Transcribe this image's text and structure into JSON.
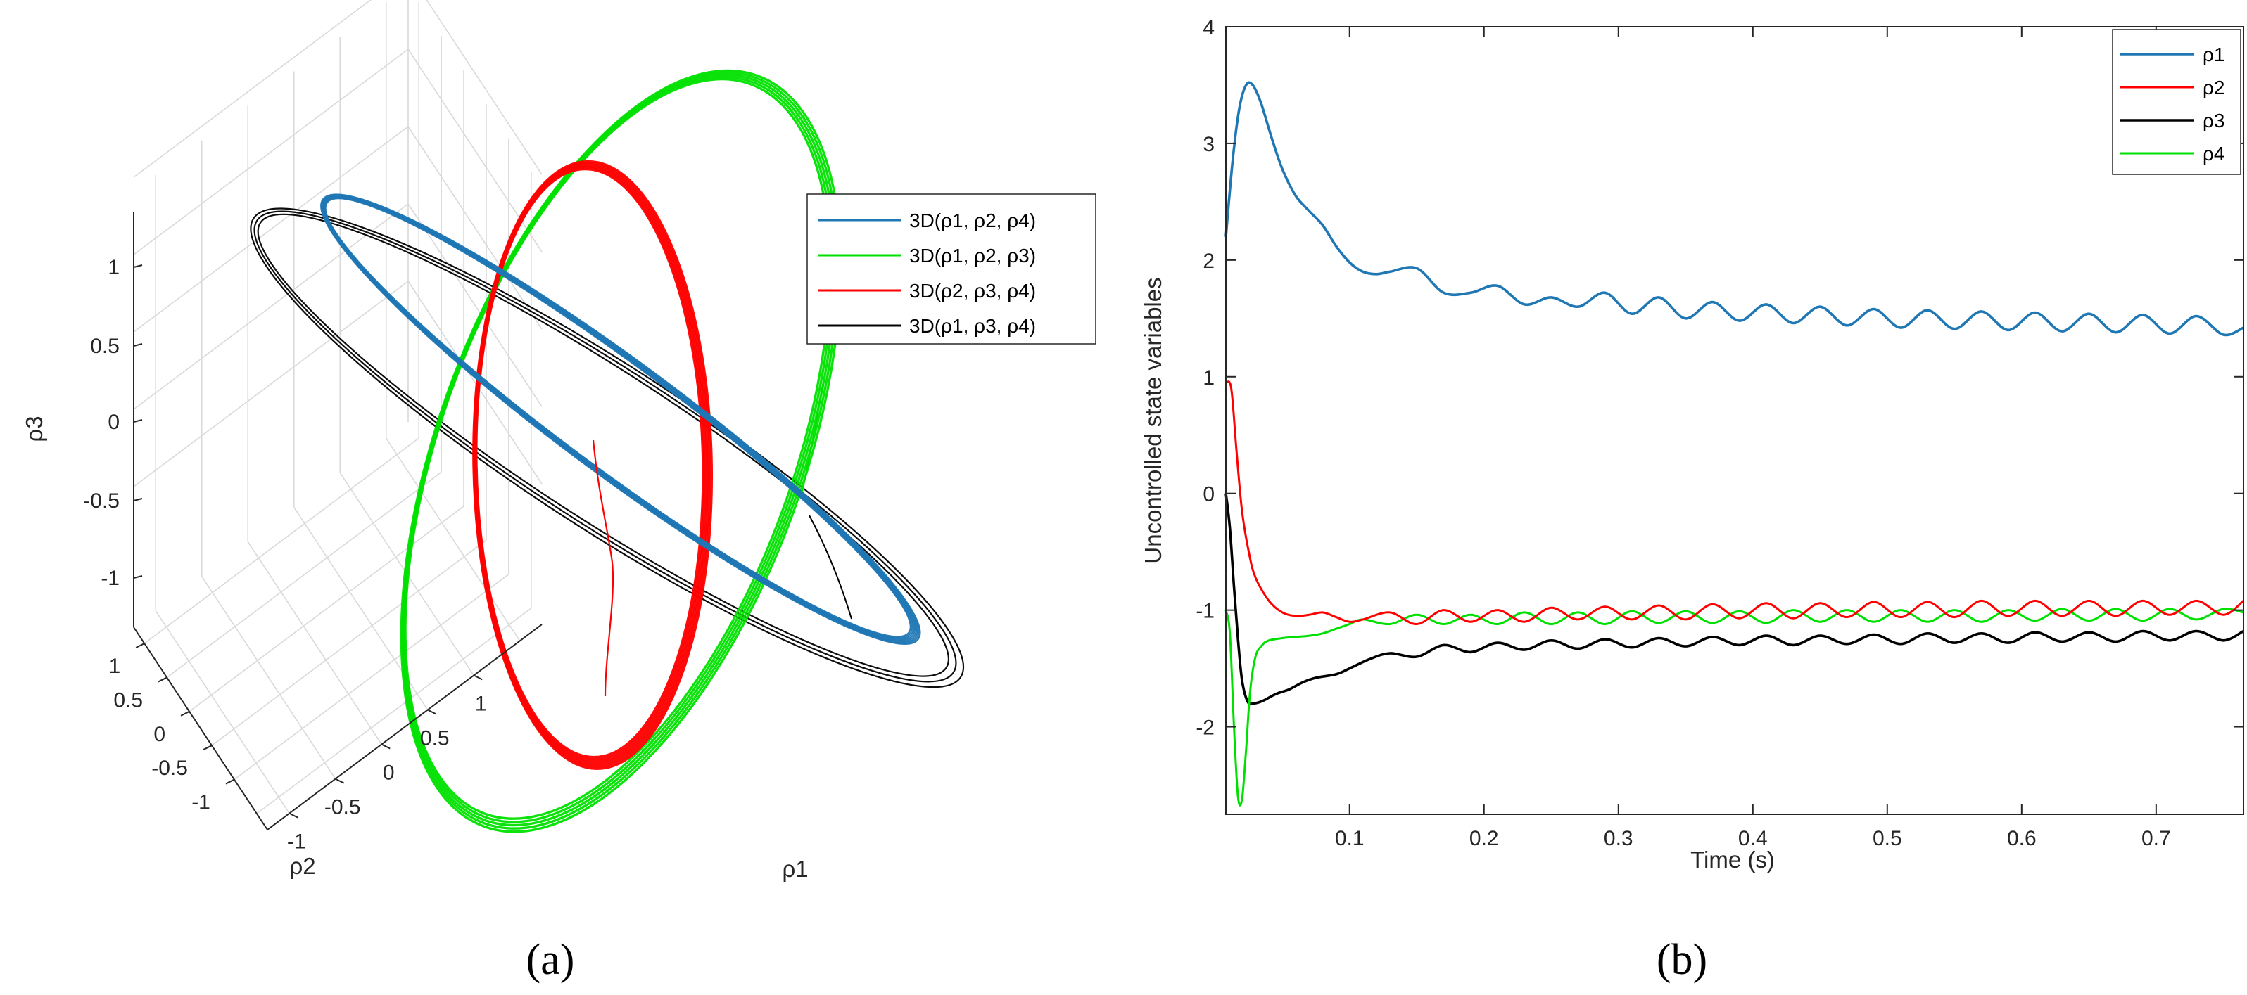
{
  "chart_data": [
    {
      "panel_label": "(a)",
      "type": "line",
      "projection": "3d",
      "xlabel": "ρ1",
      "ylabel": "ρ2",
      "zlabel": "ρ3",
      "x_ticks": [
        "-1",
        "-0.5",
        "0",
        "0.5",
        "1"
      ],
      "y_ticks": [
        "1",
        "0.5",
        "0",
        "-0.5",
        "-1"
      ],
      "z_ticks": [
        "1",
        "0.5",
        "0",
        "-0.5",
        "-1"
      ],
      "legend": {
        "placement": "top-right",
        "entries": [
          "3D(ρ1, ρ2, ρ4)",
          "3D(ρ1, ρ2, ρ3)",
          "3D(ρ2, ρ3, ρ4)",
          "3D(ρ1, ρ3, ρ4)"
        ]
      },
      "series": [
        {
          "name": "3D(ρ1, ρ2, ρ4)",
          "color": "#1f77b4",
          "shape": "closed-loop",
          "description_values": {
            "tilt_deg": 38,
            "semi_major": 1.25,
            "semi_minor": 0.18
          }
        },
        {
          "name": "3D(ρ1, ρ2, ρ3)",
          "color": "#00e000",
          "shape": "closed-loop",
          "description_values": {
            "tilt_deg": -20,
            "semi_major": 1.2,
            "semi_minor": 0.55
          }
        },
        {
          "name": "3D(ρ2, ρ3, ρ4)",
          "color": "#ff0000",
          "shape": "closed-loop",
          "description_values": {
            "tilt_deg": -4,
            "semi_major": 1.3,
            "semi_minor": 0.35
          }
        },
        {
          "name": "3D(ρ1, ρ3, ρ4)",
          "color": "#000000",
          "shape": "closed-loop",
          "description_values": {
            "tilt_deg": 36,
            "semi_major": 1.45,
            "semi_minor": 0.22
          }
        }
      ]
    },
    {
      "panel_label": "(b)",
      "type": "line",
      "xlabel": "Time (s)",
      "ylabel": "Uncontrolled state variables",
      "xlim": [
        0.008,
        0.765
      ],
      "ylim": [
        -2.75,
        4
      ],
      "x_ticks": [
        0.1,
        0.2,
        0.3,
        0.4,
        0.5,
        0.6,
        0.7
      ],
      "x_tick_labels": [
        "0.1",
        "0.2",
        "0.3",
        "0.4",
        "0.5",
        "0.6",
        "0.7"
      ],
      "y_ticks": [
        -2,
        -1,
        0,
        1,
        2,
        3,
        4
      ],
      "y_tick_labels": [
        "-2",
        "-1",
        "0",
        "1",
        "2",
        "3",
        "4"
      ],
      "legend": {
        "placement": "top-right",
        "entries": [
          "ρ1",
          "ρ2",
          "ρ3",
          "ρ4"
        ]
      },
      "series": [
        {
          "name": "ρ1",
          "color": "#1f77b4",
          "x": [
            0.008,
            0.013,
            0.018,
            0.023,
            0.028,
            0.034,
            0.042,
            0.05,
            0.06,
            0.07,
            0.08,
            0.09,
            0.1,
            0.11,
            0.12,
            0.13,
            0.15,
            0.17,
            0.19,
            0.21,
            0.23,
            0.25,
            0.27,
            0.29,
            0.31,
            0.33,
            0.35,
            0.37,
            0.39,
            0.41,
            0.43,
            0.45,
            0.47,
            0.49,
            0.51,
            0.53,
            0.55,
            0.57,
            0.59,
            0.61,
            0.63,
            0.65,
            0.67,
            0.69,
            0.71,
            0.73,
            0.75,
            0.765
          ],
          "y": [
            2.2,
            2.85,
            3.3,
            3.5,
            3.5,
            3.35,
            3.05,
            2.78,
            2.55,
            2.42,
            2.3,
            2.12,
            1.98,
            1.9,
            1.88,
            1.9,
            1.93,
            1.72,
            1.72,
            1.78,
            1.62,
            1.68,
            1.6,
            1.72,
            1.54,
            1.68,
            1.5,
            1.64,
            1.48,
            1.62,
            1.46,
            1.6,
            1.44,
            1.58,
            1.42,
            1.57,
            1.41,
            1.56,
            1.4,
            1.55,
            1.39,
            1.54,
            1.38,
            1.53,
            1.37,
            1.52,
            1.36,
            1.42
          ]
        },
        {
          "name": "ρ2",
          "color": "#ff0000",
          "x": [
            0.008,
            0.012,
            0.016,
            0.02,
            0.025,
            0.03,
            0.04,
            0.05,
            0.06,
            0.07,
            0.08,
            0.09,
            0.1,
            0.11,
            0.13,
            0.15,
            0.17,
            0.19,
            0.21,
            0.23,
            0.25,
            0.27,
            0.29,
            0.31,
            0.33,
            0.35,
            0.37,
            0.39,
            0.41,
            0.43,
            0.45,
            0.47,
            0.49,
            0.51,
            0.53,
            0.55,
            0.57,
            0.59,
            0.61,
            0.63,
            0.65,
            0.67,
            0.69,
            0.71,
            0.73,
            0.75,
            0.765
          ],
          "y": [
            0.95,
            0.9,
            0.35,
            -0.15,
            -0.5,
            -0.72,
            -0.92,
            -1.02,
            -1.05,
            -1.04,
            -1.02,
            -1.06,
            -1.1,
            -1.08,
            -1.02,
            -1.12,
            -1.0,
            -1.1,
            -1.0,
            -1.1,
            -0.98,
            -1.08,
            -0.97,
            -1.08,
            -0.96,
            -1.08,
            -0.95,
            -1.07,
            -0.94,
            -1.07,
            -0.94,
            -1.06,
            -0.93,
            -1.06,
            -0.93,
            -1.06,
            -0.92,
            -1.05,
            -0.92,
            -1.05,
            -0.92,
            -1.05,
            -0.92,
            -1.04,
            -0.92,
            -1.04,
            -0.92
          ]
        },
        {
          "name": "ρ3",
          "color": "#000000",
          "x": [
            0.008,
            0.011,
            0.014,
            0.017,
            0.02,
            0.024,
            0.028,
            0.035,
            0.045,
            0.055,
            0.065,
            0.075,
            0.09,
            0.1,
            0.115,
            0.13,
            0.15,
            0.17,
            0.19,
            0.21,
            0.23,
            0.25,
            0.27,
            0.29,
            0.31,
            0.33,
            0.35,
            0.37,
            0.39,
            0.41,
            0.43,
            0.45,
            0.47,
            0.49,
            0.51,
            0.53,
            0.55,
            0.57,
            0.59,
            0.61,
            0.63,
            0.65,
            0.67,
            0.69,
            0.71,
            0.73,
            0.75,
            0.765
          ],
          "y": [
            0.0,
            -0.3,
            -0.8,
            -1.25,
            -1.6,
            -1.78,
            -1.8,
            -1.78,
            -1.72,
            -1.68,
            -1.62,
            -1.58,
            -1.55,
            -1.5,
            -1.42,
            -1.37,
            -1.4,
            -1.3,
            -1.36,
            -1.28,
            -1.34,
            -1.26,
            -1.33,
            -1.25,
            -1.32,
            -1.24,
            -1.31,
            -1.23,
            -1.3,
            -1.22,
            -1.3,
            -1.22,
            -1.29,
            -1.21,
            -1.29,
            -1.2,
            -1.28,
            -1.2,
            -1.28,
            -1.19,
            -1.27,
            -1.19,
            -1.27,
            -1.18,
            -1.26,
            -1.18,
            -1.26,
            -1.18
          ]
        },
        {
          "name": "ρ4",
          "color": "#00e000",
          "x": [
            0.008,
            0.011,
            0.014,
            0.017,
            0.02,
            0.023,
            0.026,
            0.03,
            0.035,
            0.04,
            0.05,
            0.06,
            0.07,
            0.08,
            0.09,
            0.1,
            0.11,
            0.13,
            0.15,
            0.17,
            0.19,
            0.21,
            0.23,
            0.25,
            0.27,
            0.29,
            0.31,
            0.33,
            0.35,
            0.37,
            0.39,
            0.41,
            0.43,
            0.45,
            0.47,
            0.49,
            0.51,
            0.53,
            0.55,
            0.57,
            0.59,
            0.61,
            0.63,
            0.65,
            0.67,
            0.69,
            0.71,
            0.73,
            0.75,
            0.765
          ],
          "y": [
            -1.0,
            -1.2,
            -2.0,
            -2.6,
            -2.62,
            -2.2,
            -1.7,
            -1.4,
            -1.3,
            -1.26,
            -1.24,
            -1.23,
            -1.22,
            -1.2,
            -1.16,
            -1.12,
            -1.08,
            -1.12,
            -1.04,
            -1.12,
            -1.04,
            -1.12,
            -1.02,
            -1.12,
            -1.02,
            -1.12,
            -1.01,
            -1.11,
            -1.01,
            -1.11,
            -1.01,
            -1.11,
            -1.0,
            -1.1,
            -1.0,
            -1.1,
            -1.0,
            -1.1,
            -1.0,
            -1.1,
            -1.0,
            -1.09,
            -0.99,
            -1.09,
            -0.99,
            -1.09,
            -0.99,
            -1.08,
            -0.99,
            -1.02
          ]
        }
      ]
    }
  ]
}
